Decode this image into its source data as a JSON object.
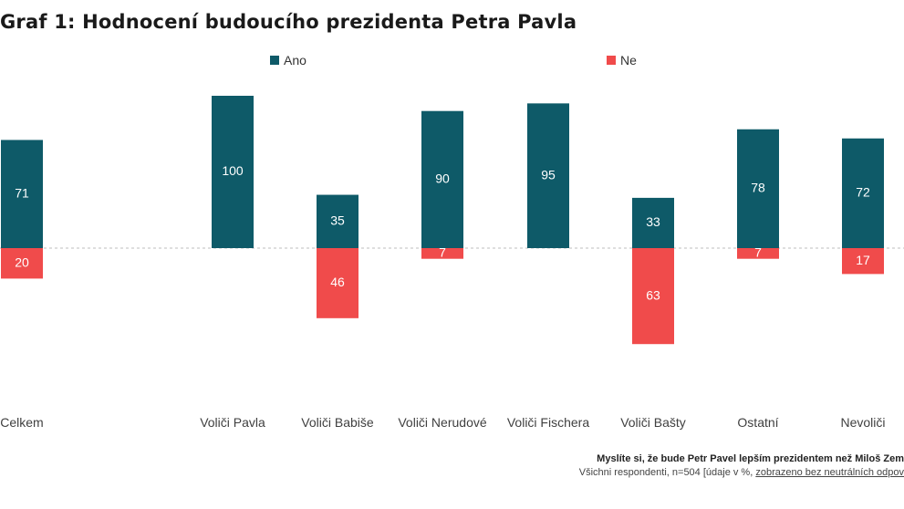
{
  "title": "Graf 1: Hodnocení budoucího prezidenta Petra Pavla",
  "footnote": {
    "question": "Myslíte si, že bude Petr Pavel lepším prezidentem než Miloš Zem",
    "meta_prefix": "Všichni respondenti, n=504 [údaje v %, ",
    "meta_underlined": "zobrazeno bez neutrálních odpov"
  },
  "colors": {
    "ano": "#0e5a68",
    "ne": "#f04b4b",
    "baseline": "#bfbfbf"
  },
  "chart_data": {
    "type": "bar",
    "legend_position": "top",
    "categories": [
      "Celkem",
      "Voliči Pavla",
      "Voliči Babiše",
      "Voliči Nerudové",
      "Voliči Fischera",
      "Voliči Bašty",
      "Ostatní",
      "Nevoliči"
    ],
    "series": [
      {
        "name": "Ano",
        "values": [
          71,
          100,
          35,
          90,
          95,
          33,
          78,
          72
        ]
      },
      {
        "name": "Ne",
        "values": [
          20,
          null,
          46,
          7,
          null,
          63,
          7,
          17
        ]
      }
    ],
    "data_labels": {
      "Ano": [
        "71",
        "100",
        "35",
        "90",
        "95",
        "33",
        "78",
        "72"
      ],
      "Ne": [
        "20",
        "",
        "46",
        "7",
        "",
        "63",
        "7",
        "17"
      ]
    }
  }
}
